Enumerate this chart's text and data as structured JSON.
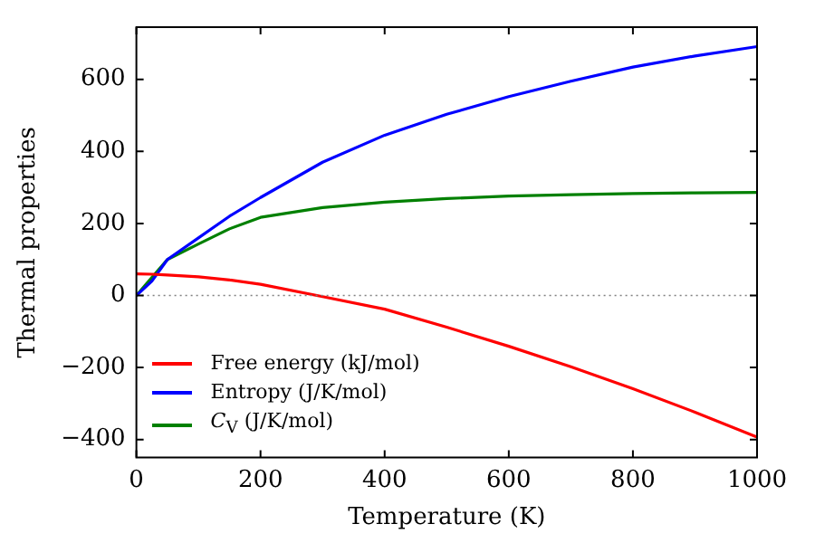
{
  "chart_data": {
    "type": "line",
    "xlabel": "Temperature (K)",
    "ylabel": "Thermal properties",
    "x": [
      0,
      25,
      50,
      100,
      150,
      200,
      300,
      400,
      500,
      600,
      700,
      800,
      900,
      1000
    ],
    "series": [
      {
        "name": "Free energy (kJ/mol)",
        "color": "#ff0000",
        "values": [
          60,
          59,
          57,
          52,
          43,
          31,
          -3,
          -38,
          -88,
          -141,
          -198,
          -259,
          -324,
          -393
        ]
      },
      {
        "name": "Entropy (J/K/mol)",
        "color": "#0000ff",
        "values": [
          0,
          40,
          100,
          160,
          220,
          272,
          370,
          445,
          503,
          552,
          595,
          634,
          665,
          691
        ]
      },
      {
        "name": "C$_{V}$ (J/K/mol)",
        "color": "#008000",
        "values": [
          0,
          50,
          100,
          143,
          185,
          217,
          244,
          259,
          269,
          276,
          280,
          283,
          285,
          286
        ]
      }
    ],
    "xlim": [
      0,
      1000
    ],
    "xticks": [
      0,
      200,
      400,
      600,
      800,
      1000
    ],
    "ylim": [
      -450,
      745
    ],
    "yticks": [
      -400,
      -200,
      0,
      200,
      400,
      600
    ],
    "ref_lines": [
      {
        "axis": "y",
        "value": 0,
        "color": "#808080",
        "line_style": "dotted"
      }
    ],
    "legend": "bottom left",
    "grid": false,
    "marker": "none",
    "line_style": "solid"
  }
}
